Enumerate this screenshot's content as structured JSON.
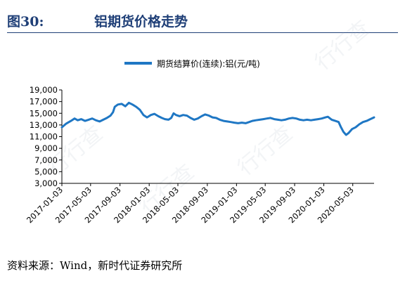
{
  "figure": {
    "number": "图30:",
    "title": "铝期货价格走势",
    "source": "资料来源：Wind，新时代证券研究所"
  },
  "chart_data": {
    "type": "line",
    "title": "",
    "xlabel": "",
    "ylabel": "",
    "ylim": [
      3000,
      19000
    ],
    "yticks": [
      3000,
      5000,
      7000,
      9000,
      11000,
      13000,
      15000,
      17000,
      19000
    ],
    "ytick_labels": [
      "3,000",
      "5,000",
      "7,000",
      "9,000",
      "11,000",
      "13,000",
      "15,000",
      "17,000",
      "19,000"
    ],
    "x_range": [
      "2017-01-03",
      "2020-07-31"
    ],
    "xticks": [
      "2017-01-03",
      "2017-05-03",
      "2017-09-03",
      "2018-01-03",
      "2018-05-03",
      "2018-09-03",
      "2019-01-03",
      "2019-05-03",
      "2019-09-03",
      "2020-01-03",
      "2020-05-03"
    ],
    "grid": false,
    "legend_position": "top-center",
    "series": [
      {
        "name": "期货结算价(连续):铝(元/吨)",
        "color": "#1f77c4",
        "points": [
          [
            "2017-01-03",
            12600
          ],
          [
            "2017-01-20",
            13200
          ],
          [
            "2017-02-10",
            13700
          ],
          [
            "2017-02-25",
            14100
          ],
          [
            "2017-03-10",
            13800
          ],
          [
            "2017-03-25",
            14000
          ],
          [
            "2017-04-10",
            13700
          ],
          [
            "2017-04-25",
            13900
          ],
          [
            "2017-05-10",
            14100
          ],
          [
            "2017-05-25",
            13800
          ],
          [
            "2017-06-10",
            13600
          ],
          [
            "2017-06-25",
            13900
          ],
          [
            "2017-07-10",
            14200
          ],
          [
            "2017-07-25",
            14600
          ],
          [
            "2017-08-05",
            15200
          ],
          [
            "2017-08-12",
            16100
          ],
          [
            "2017-08-25",
            16500
          ],
          [
            "2017-09-10",
            16600
          ],
          [
            "2017-09-25",
            16200
          ],
          [
            "2017-10-10",
            16800
          ],
          [
            "2017-10-25",
            16500
          ],
          [
            "2017-11-10",
            16100
          ],
          [
            "2017-11-25",
            15600
          ],
          [
            "2017-12-10",
            14700
          ],
          [
            "2017-12-25",
            14300
          ],
          [
            "2018-01-10",
            14700
          ],
          [
            "2018-01-25",
            14900
          ],
          [
            "2018-02-10",
            14500
          ],
          [
            "2018-02-25",
            14200
          ],
          [
            "2018-03-10",
            14000
          ],
          [
            "2018-03-25",
            13900
          ],
          [
            "2018-04-05",
            14200
          ],
          [
            "2018-04-15",
            15000
          ],
          [
            "2018-04-25",
            14700
          ],
          [
            "2018-05-10",
            14500
          ],
          [
            "2018-05-25",
            14700
          ],
          [
            "2018-06-10",
            14600
          ],
          [
            "2018-06-25",
            14200
          ],
          [
            "2018-07-10",
            13900
          ],
          [
            "2018-07-25",
            14100
          ],
          [
            "2018-08-10",
            14500
          ],
          [
            "2018-08-25",
            14800
          ],
          [
            "2018-09-10",
            14600
          ],
          [
            "2018-09-25",
            14300
          ],
          [
            "2018-10-10",
            14200
          ],
          [
            "2018-10-25",
            13900
          ],
          [
            "2018-11-10",
            13700
          ],
          [
            "2018-11-25",
            13600
          ],
          [
            "2018-12-10",
            13500
          ],
          [
            "2018-12-25",
            13400
          ],
          [
            "2019-01-10",
            13300
          ],
          [
            "2019-01-25",
            13400
          ],
          [
            "2019-02-10",
            13300
          ],
          [
            "2019-02-25",
            13500
          ],
          [
            "2019-03-10",
            13700
          ],
          [
            "2019-03-25",
            13800
          ],
          [
            "2019-04-10",
            13900
          ],
          [
            "2019-04-25",
            14000
          ],
          [
            "2019-05-10",
            14100
          ],
          [
            "2019-05-25",
            14200
          ],
          [
            "2019-06-10",
            14000
          ],
          [
            "2019-06-25",
            13900
          ],
          [
            "2019-07-10",
            13800
          ],
          [
            "2019-07-25",
            13900
          ],
          [
            "2019-08-10",
            14100
          ],
          [
            "2019-08-25",
            14200
          ],
          [
            "2019-09-10",
            14100
          ],
          [
            "2019-09-25",
            13900
          ],
          [
            "2019-10-10",
            13800
          ],
          [
            "2019-10-25",
            13900
          ],
          [
            "2019-11-10",
            13800
          ],
          [
            "2019-11-25",
            13900
          ],
          [
            "2019-12-10",
            14000
          ],
          [
            "2019-12-25",
            14100
          ],
          [
            "2020-01-10",
            14300
          ],
          [
            "2020-01-20",
            14400
          ],
          [
            "2020-02-05",
            13900
          ],
          [
            "2020-02-20",
            13700
          ],
          [
            "2020-03-05",
            13500
          ],
          [
            "2020-03-15",
            12600
          ],
          [
            "2020-03-25",
            11800
          ],
          [
            "2020-04-05",
            11300
          ],
          [
            "2020-04-15",
            11600
          ],
          [
            "2020-04-30",
            12300
          ],
          [
            "2020-05-15",
            12600
          ],
          [
            "2020-05-30",
            13100
          ],
          [
            "2020-06-15",
            13500
          ],
          [
            "2020-06-30",
            13700
          ],
          [
            "2020-07-15",
            14000
          ],
          [
            "2020-07-31",
            14300
          ]
        ]
      }
    ]
  },
  "watermark": [
    "行行查",
    "行行查",
    "行行查",
    "行行查"
  ]
}
